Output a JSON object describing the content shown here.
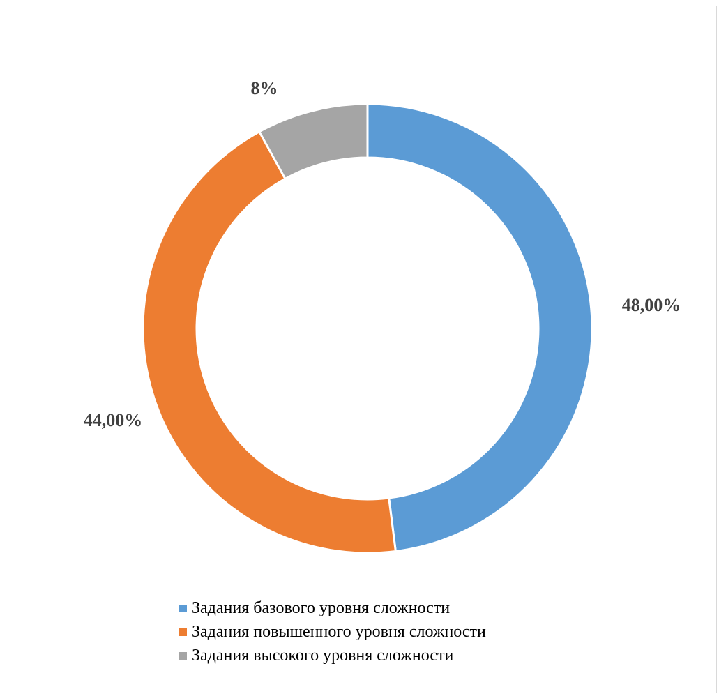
{
  "chart_data": {
    "type": "pie",
    "title": "",
    "donut": true,
    "slices": [
      {
        "label": "Задания базового уровня сложности",
        "value": 48,
        "data_label": "48,00%",
        "color": "#5b9bd5"
      },
      {
        "label": "Задания повышенного уровня сложности",
        "value": 44,
        "data_label": "44,00%",
        "color": "#ed7d31"
      },
      {
        "label": "Задания высокого уровня сложности",
        "value": 8,
        "data_label": "8%",
        "color": "#a5a5a5"
      }
    ],
    "legend_position": "bottom"
  }
}
